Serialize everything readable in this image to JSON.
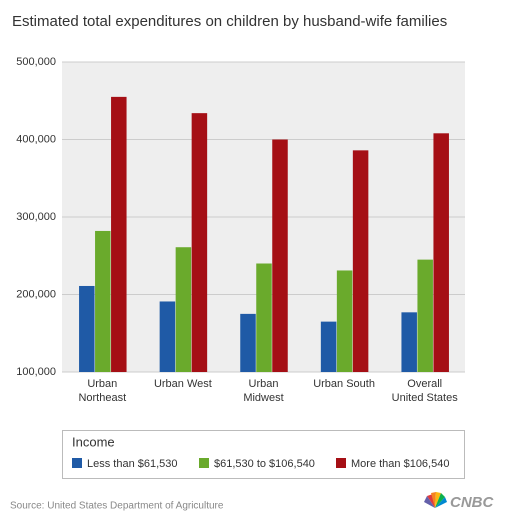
{
  "chart_data": {
    "type": "bar",
    "title": "Estimated total expenditures on children by husband-wife families",
    "categories": [
      "Urban\nNortheast",
      "Urban West",
      "Urban\nMidwest",
      "Urban South",
      "Overall\nUnited States"
    ],
    "series": [
      {
        "name": "Less than $61,530",
        "color": "#1f5aa6",
        "values": [
          211000,
          191000,
          175000,
          165000,
          177000
        ]
      },
      {
        "name": "$61,530 to $106,540",
        "color": "#6aaa2c",
        "values": [
          282000,
          261000,
          240000,
          231000,
          245000
        ]
      },
      {
        "name": "More than $106,540",
        "color": "#a50f15",
        "values": [
          455000,
          434000,
          400000,
          386000,
          408000
        ]
      }
    ],
    "legend_title": "Income",
    "ylim": [
      100000,
      500000
    ],
    "yticks": [
      {
        "value": 100000,
        "label": "100,000"
      },
      {
        "value": 200000,
        "label": "200,000"
      },
      {
        "value": 300000,
        "label": "300,000"
      },
      {
        "value": 400000,
        "label": "400,000"
      },
      {
        "value": 500000,
        "label": "500,000"
      }
    ],
    "grid": true,
    "source": "Source: United States Department of Agriculture",
    "logo": "CNBC"
  }
}
